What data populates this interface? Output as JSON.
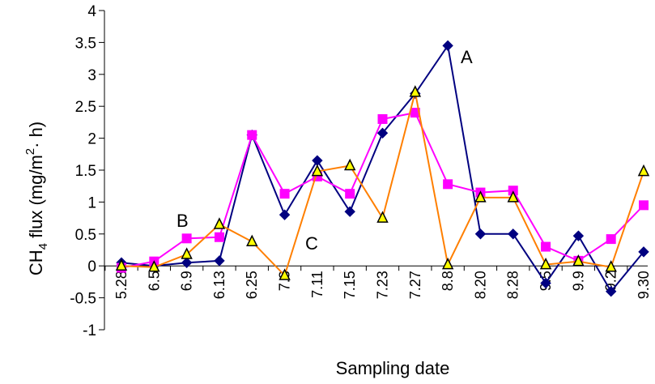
{
  "chart_data": {
    "type": "line",
    "title": "",
    "xlabel": "Sampling date",
    "ylabel_main": "CH",
    "ylabel_sub": "4",
    "ylabel_rest": " flux (mg/m",
    "ylabel_sup": "2",
    "ylabel_end": "· h)",
    "categories": [
      "5.28",
      "6.5",
      "6.9",
      "6.13",
      "6.25",
      "7.3",
      "7.11",
      "7.15",
      "7.23",
      "7.27",
      "8.8",
      "8.20",
      "8.28",
      "9.5",
      "9.9",
      "9.2",
      "9.30"
    ],
    "ylim": [
      -1,
      4
    ],
    "yticks": [
      "4",
      "3.5",
      "3",
      "2.5",
      "2",
      "1.5",
      "1",
      "0.5",
      "0",
      "-0.5",
      "-1"
    ],
    "annotations": [
      {
        "text": "A",
        "series": "A"
      },
      {
        "text": "B",
        "series": "B"
      },
      {
        "text": "C",
        "series": "C"
      }
    ],
    "series": [
      {
        "name": "A",
        "color": "#000080",
        "marker": "diamond",
        "values": [
          0.05,
          0.0,
          0.05,
          0.08,
          2.05,
          0.8,
          1.65,
          0.85,
          2.08,
          2.7,
          3.45,
          0.5,
          0.5,
          -0.27,
          0.47,
          -0.4,
          0.22
        ]
      },
      {
        "name": "B",
        "color": "#ff00ff",
        "marker": "square",
        "values": [
          -0.03,
          0.07,
          0.43,
          0.45,
          2.05,
          1.13,
          1.4,
          1.13,
          2.3,
          2.4,
          1.28,
          1.15,
          1.18,
          0.3,
          0.08,
          0.42,
          0.95
        ]
      },
      {
        "name": "C",
        "color": "#ff7f00",
        "marker": "triangle",
        "values": [
          0.0,
          -0.02,
          0.18,
          0.65,
          0.38,
          -0.15,
          1.48,
          1.57,
          0.75,
          2.72,
          0.02,
          1.07,
          1.07,
          0.02,
          0.07,
          -0.02,
          1.48
        ]
      }
    ]
  }
}
